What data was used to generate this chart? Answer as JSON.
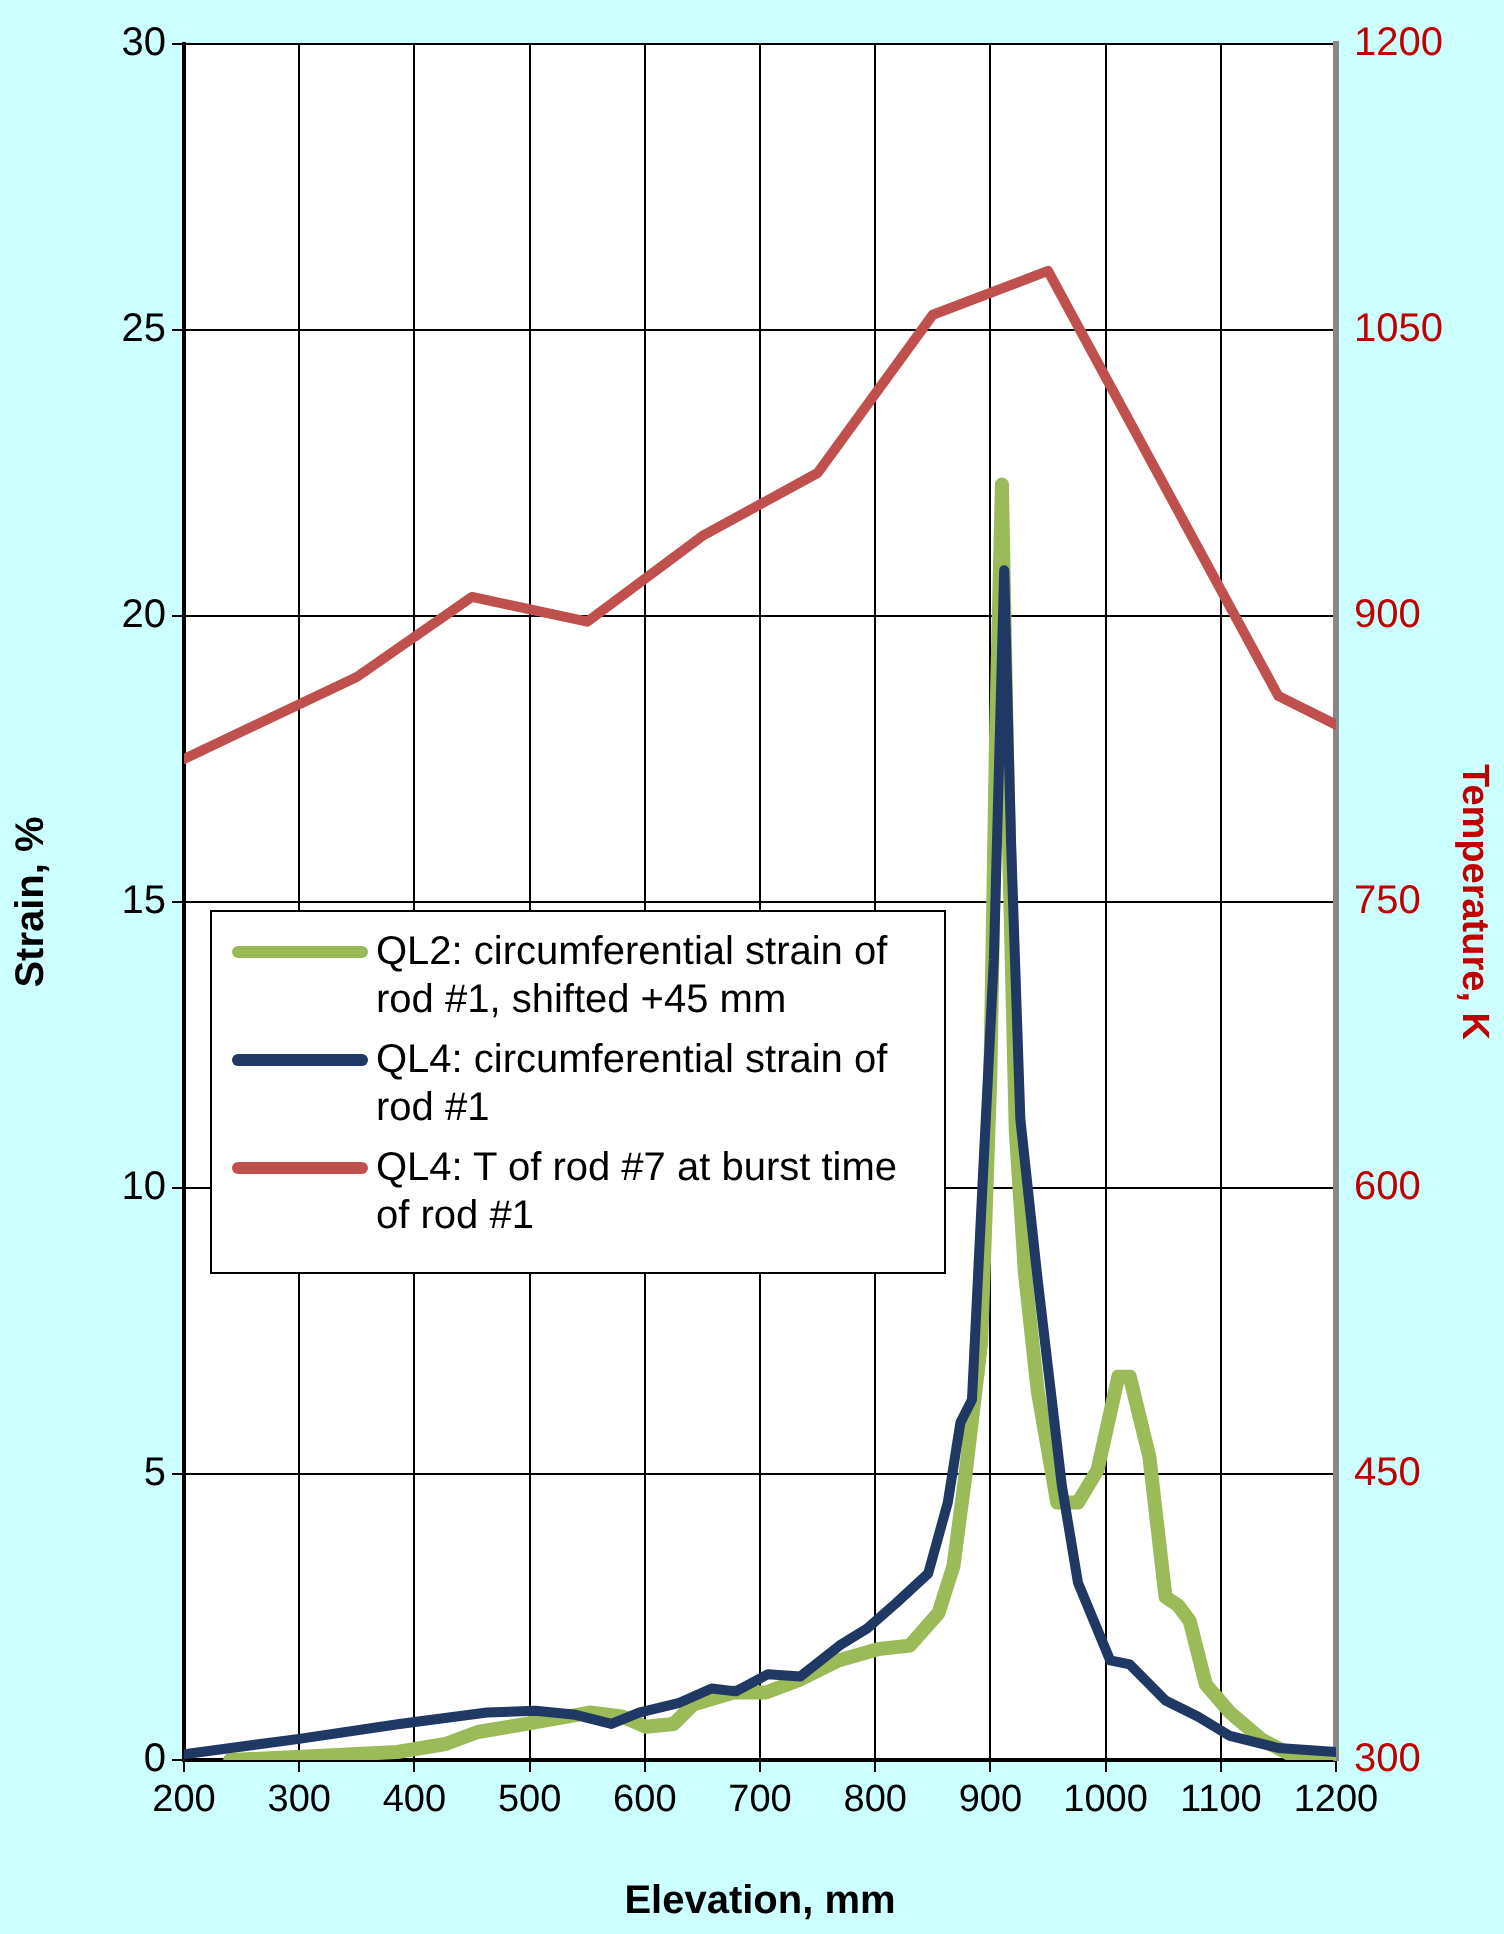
{
  "chart_data": {
    "type": "line",
    "xlabel": "Elevation, mm",
    "ylabel": "Strain, %",
    "y2label": "Temperature, K",
    "xlim": [
      200,
      1200
    ],
    "xticks": [
      200,
      300,
      400,
      500,
      600,
      700,
      800,
      900,
      1000,
      1100,
      1200
    ],
    "ylim": [
      0,
      30
    ],
    "yticks": [
      0,
      5,
      10,
      15,
      20,
      25,
      30
    ],
    "y2lim": [
      300,
      1200
    ],
    "y2ticks": [
      300,
      450,
      600,
      750,
      900,
      1050,
      1200
    ],
    "grid": true,
    "legend": "left",
    "marker": "none",
    "line_style": "solid",
    "series": [
      {
        "name": "QL2: circumferential strain of rod #1, shifted +45 mm",
        "color": "#9bbb59",
        "x": [
          240,
          316,
          385,
          427,
          455,
          497,
          552,
          580,
          601,
          625,
          642,
          677,
          705,
          733,
          768,
          803,
          830,
          855,
          868,
          878,
          892,
          900,
          905,
          910,
          915,
          922,
          930,
          941,
          958,
          976,
          993,
          1011,
          1021,
          1038,
          1052,
          1063,
          1073,
          1087,
          1108,
          1136,
          1163,
          1200
        ],
        "values": [
          0,
          0.07,
          0.14,
          0.28,
          0.49,
          0.63,
          0.83,
          0.76,
          0.58,
          0.63,
          0.97,
          1.18,
          1.18,
          1.39,
          1.74,
          1.94,
          2.0,
          2.57,
          3.4,
          4.93,
          7.3,
          12,
          18,
          22.3,
          17,
          11,
          8.5,
          6.46,
          4.5,
          4.5,
          5.07,
          6.7,
          6.7,
          5.3,
          2.85,
          2.7,
          2.43,
          1.32,
          0.83,
          0.35,
          0.07,
          0
        ]
      },
      {
        "name": "QL4: circumferential strain of rod #1",
        "color": "#1f3864",
        "x": [
          200,
          300,
          387,
          463,
          505,
          540,
          571,
          595,
          630,
          658,
          679,
          707,
          735,
          769,
          793,
          818,
          846,
          863,
          874,
          884,
          893,
          903,
          912,
          918,
          926,
          941,
          962,
          976,
          1004,
          1021,
          1052,
          1080,
          1108,
          1150,
          1200
        ],
        "values": [
          0.1,
          0.37,
          0.63,
          0.83,
          0.86,
          0.79,
          0.63,
          0.83,
          1.0,
          1.25,
          1.2,
          1.5,
          1.46,
          2.0,
          2.3,
          2.74,
          3.26,
          4.5,
          5.9,
          6.3,
          10,
          14,
          20.8,
          16,
          11.2,
          8.4,
          4.8,
          3.1,
          1.74,
          1.67,
          1.04,
          0.76,
          0.42,
          0.21,
          0.14
        ]
      },
      {
        "name": "QL4: T of rod #7 at burst time of rod #1",
        "color": "#c0504d",
        "axis": "y2",
        "x": [
          200,
          350,
          450,
          550,
          650,
          750,
          850,
          950,
          1150,
          1200
        ],
        "values": [
          825,
          868,
          910,
          897,
          942,
          975,
          1058,
          1081,
          858,
          843
        ]
      }
    ]
  }
}
